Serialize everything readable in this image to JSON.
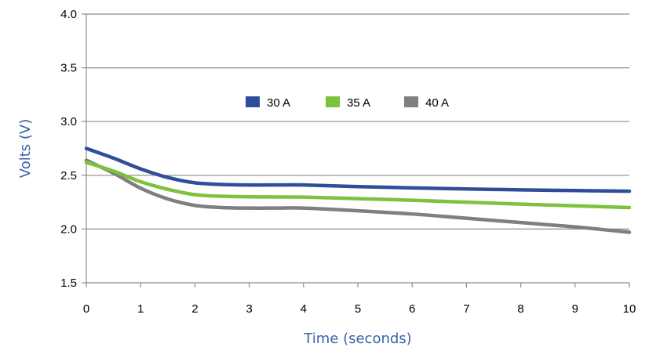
{
  "chart_data": {
    "type": "line",
    "title": "",
    "xlabel": "Time (seconds)",
    "ylabel": "Volts (V)",
    "axis_title_color": "#3a62a7",
    "xlim": [
      0,
      10
    ],
    "ylim": [
      1.5,
      4.0
    ],
    "x_ticks": [
      "0",
      "1",
      "2",
      "3",
      "4",
      "5",
      "6",
      "7",
      "8",
      "9",
      "10"
    ],
    "y_ticks": [
      "1.5",
      "2.0",
      "2.5",
      "3.0",
      "3.5",
      "4.0"
    ],
    "grid": "horizontal",
    "legend_position": "top-center",
    "series": [
      {
        "name": "30 A",
        "color": "#2e4e9b",
        "x": [
          0,
          0.5,
          1,
          1.5,
          2,
          2.5,
          3,
          3.5,
          4,
          5,
          6,
          7,
          8,
          9,
          10
        ],
        "y": [
          2.75,
          2.66,
          2.56,
          2.48,
          2.43,
          2.415,
          2.41,
          2.41,
          2.41,
          2.395,
          2.383,
          2.373,
          2.365,
          2.358,
          2.352
        ]
      },
      {
        "name": "35 A",
        "color": "#7dc23e",
        "x": [
          0,
          0.5,
          1,
          1.5,
          2,
          2.5,
          3,
          3.5,
          4,
          5,
          6,
          7,
          8,
          9,
          10
        ],
        "y": [
          2.62,
          2.54,
          2.44,
          2.37,
          2.32,
          2.305,
          2.3,
          2.298,
          2.297,
          2.283,
          2.268,
          2.25,
          2.232,
          2.216,
          2.2
        ]
      },
      {
        "name": "40 A",
        "color": "#7f7f80",
        "x": [
          0,
          0.5,
          1,
          1.5,
          2,
          2.5,
          3,
          3.5,
          4,
          5,
          6,
          7,
          8,
          9,
          10
        ],
        "y": [
          2.64,
          2.52,
          2.38,
          2.28,
          2.22,
          2.2,
          2.195,
          2.195,
          2.195,
          2.17,
          2.14,
          2.1,
          2.06,
          2.02,
          1.97
        ]
      }
    ]
  }
}
